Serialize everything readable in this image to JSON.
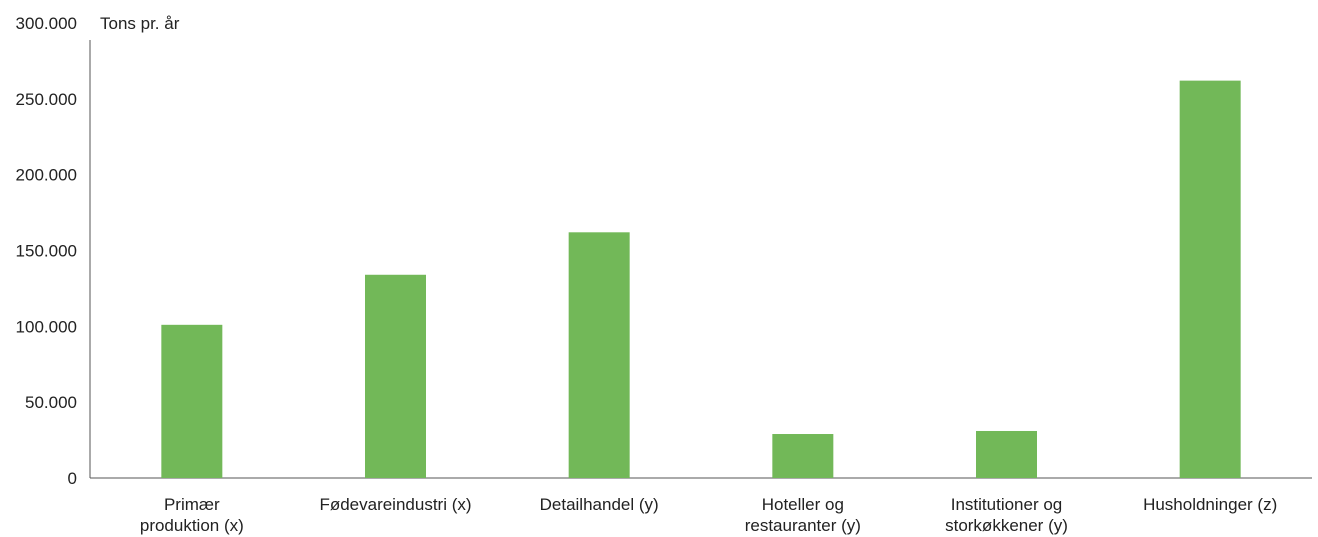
{
  "chart_data": {
    "type": "bar",
    "unit_label": "Tons pr. år",
    "categories": [
      [
        "Primær",
        "produktion (x)"
      ],
      [
        "Fødevareindustri (x)"
      ],
      [
        "Detailhandel (y)"
      ],
      [
        "Hoteller og",
        "restauranter (y)"
      ],
      [
        "Institutioner og",
        "storkøkkener (y)"
      ],
      [
        "Husholdninger (z)"
      ]
    ],
    "values": [
      101000,
      134000,
      162000,
      29000,
      31000,
      262000
    ],
    "ylim": [
      0,
      300000
    ],
    "yticks": [
      0,
      50000,
      100000,
      150000,
      200000,
      250000,
      300000
    ],
    "ytick_labels": [
      "0",
      "50.000",
      "100.000",
      "150.000",
      "200.000",
      "250.000",
      "300.000"
    ],
    "grid": false,
    "bar_color": "#72b858",
    "axis_color": "#555555"
  }
}
